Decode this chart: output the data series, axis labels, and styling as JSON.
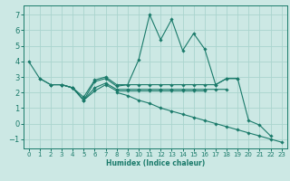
{
  "title": "",
  "xlabel": "Humidex (Indice chaleur)",
  "ylabel": "",
  "bg_color": "#cce8e4",
  "grid_color": "#aad4ce",
  "line_color": "#1a7a6a",
  "spine_color": "#1a7a6a",
  "xlim": [
    -0.5,
    23.5
  ],
  "ylim": [
    -1.6,
    7.6
  ],
  "xticks": [
    0,
    1,
    2,
    3,
    4,
    5,
    6,
    7,
    8,
    9,
    10,
    11,
    12,
    13,
    14,
    15,
    16,
    17,
    18,
    19,
    20,
    21,
    22,
    23
  ],
  "yticks": [
    -1,
    0,
    1,
    2,
    3,
    4,
    5,
    6,
    7
  ],
  "lines": [
    {
      "x": [
        0,
        1,
        2,
        3,
        4,
        5,
        6,
        7,
        8,
        9,
        10,
        11,
        12,
        13,
        14,
        15,
        16,
        17,
        18,
        19,
        20,
        21,
        22
      ],
      "y": [
        4.0,
        2.9,
        2.5,
        2.5,
        2.3,
        1.7,
        2.8,
        3.0,
        2.5,
        2.5,
        4.1,
        7.0,
        5.4,
        6.7,
        4.7,
        5.8,
        4.8,
        2.5,
        2.9,
        2.9,
        0.2,
        -0.1,
        -0.8
      ]
    },
    {
      "x": [
        1,
        2,
        3,
        4,
        5,
        6,
        7,
        8,
        9,
        10,
        11,
        12,
        13,
        14,
        15,
        16,
        17,
        18,
        19
      ],
      "y": [
        2.9,
        2.5,
        2.5,
        2.3,
        1.5,
        2.7,
        2.9,
        2.4,
        2.5,
        2.5,
        2.5,
        2.5,
        2.5,
        2.5,
        2.5,
        2.5,
        2.5,
        2.9,
        2.9
      ]
    },
    {
      "x": [
        2,
        3,
        4,
        5,
        6,
        7,
        8,
        9,
        10,
        11,
        12,
        13,
        14,
        15,
        16,
        17,
        18
      ],
      "y": [
        2.5,
        2.5,
        2.3,
        1.5,
        2.3,
        2.6,
        2.2,
        2.2,
        2.2,
        2.2,
        2.2,
        2.2,
        2.2,
        2.2,
        2.2,
        2.2,
        2.2
      ]
    },
    {
      "x": [
        3,
        4,
        5,
        6,
        7,
        8,
        9,
        10,
        11,
        12,
        13,
        14,
        15,
        16
      ],
      "y": [
        2.5,
        2.3,
        1.5,
        2.1,
        2.5,
        2.1,
        2.1,
        2.1,
        2.1,
        2.1,
        2.1,
        2.1,
        2.1,
        2.1
      ]
    },
    {
      "x": [
        8,
        9,
        10,
        11,
        12,
        13,
        14,
        15,
        16,
        17,
        18,
        19,
        20,
        21,
        22,
        23
      ],
      "y": [
        2.0,
        1.8,
        1.5,
        1.3,
        1.0,
        0.8,
        0.6,
        0.4,
        0.2,
        0.0,
        -0.2,
        -0.4,
        -0.6,
        -0.8,
        -1.0,
        -1.2
      ]
    }
  ]
}
